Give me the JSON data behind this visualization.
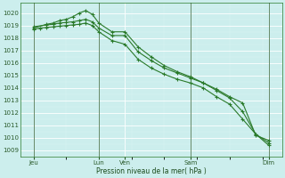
{
  "title": "Pression niveau de la mer( hPa )",
  "ylabel_values": [
    1009,
    1010,
    1011,
    1012,
    1013,
    1014,
    1015,
    1016,
    1017,
    1018,
    1019,
    1020
  ],
  "ylim": [
    1008.5,
    1020.8
  ],
  "xlim": [
    0,
    20
  ],
  "bg_color": "#cceeed",
  "grid_major_color": "#ffffff",
  "grid_minor_color": "#ddf5f3",
  "line_color": "#2a7a2a",
  "xtick_labels": [
    "Jeu",
    "Lun",
    "Ven",
    "Sam",
    "Dim"
  ],
  "xtick_positions": [
    1,
    6,
    8,
    13,
    19
  ],
  "vline_positions": [
    1,
    6,
    13,
    19
  ],
  "series1_x": [
    1,
    2,
    2.5,
    3,
    3.5,
    4,
    4.5,
    5,
    5.5,
    6,
    7,
    8,
    9,
    10,
    11,
    12,
    13,
    14,
    15,
    16,
    17,
    18,
    19
  ],
  "series1_y": [
    1018.8,
    1019.1,
    1019.2,
    1019.4,
    1019.5,
    1019.7,
    1020.0,
    1020.2,
    1019.9,
    1019.2,
    1018.5,
    1018.5,
    1017.3,
    1016.5,
    1015.8,
    1015.3,
    1014.9,
    1014.4,
    1013.8,
    1013.2,
    1012.1,
    1010.3,
    1009.6
  ],
  "series2_x": [
    1,
    2,
    2.5,
    3,
    3.5,
    4,
    4.5,
    5,
    5.5,
    6,
    7,
    8,
    9,
    10,
    11,
    12,
    13,
    14,
    15,
    16,
    17,
    18,
    19
  ],
  "series2_y": [
    1018.9,
    1019.05,
    1019.1,
    1019.2,
    1019.25,
    1019.3,
    1019.4,
    1019.5,
    1019.3,
    1018.8,
    1018.2,
    1018.2,
    1016.9,
    1016.2,
    1015.6,
    1015.2,
    1014.8,
    1014.4,
    1013.9,
    1013.3,
    1012.8,
    1010.2,
    1009.8
  ],
  "series3_x": [
    1,
    1.5,
    2,
    2.5,
    3,
    3.5,
    4,
    4.5,
    5,
    5.5,
    6,
    7,
    8,
    9,
    10,
    11,
    12,
    13,
    14,
    15,
    16,
    17,
    18,
    19
  ],
  "series3_y": [
    1018.7,
    1018.8,
    1018.85,
    1018.9,
    1018.95,
    1019.0,
    1019.05,
    1019.1,
    1019.2,
    1019.0,
    1018.5,
    1017.8,
    1017.5,
    1016.3,
    1015.6,
    1015.1,
    1014.7,
    1014.4,
    1014.0,
    1013.3,
    1012.7,
    1011.5,
    1010.3,
    1009.4
  ]
}
